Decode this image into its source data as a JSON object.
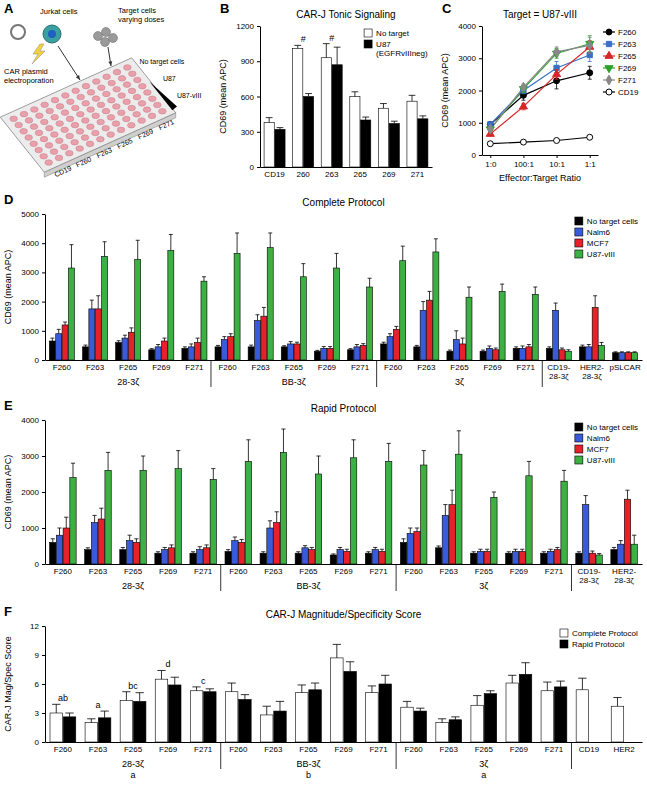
{
  "diagram": {
    "panel": "A",
    "plasmid_label": "CAR plasmid electroporation",
    "jurkat_label": "Jurkat cells",
    "target_label": "Target cells varying doses",
    "column_labels": [
      "No target cells",
      "U87",
      "U87-vIII"
    ],
    "row_labels": [
      "CD19",
      "F260",
      "F263",
      "F265",
      "F269",
      "F271"
    ]
  },
  "chart_data": [
    {
      "panel": "B",
      "type": "bar",
      "title": "CAR-J Tonic Signaling",
      "y_label": "CD69 (mean APC)",
      "categories": [
        "CD19",
        "260",
        "263",
        "265",
        "269",
        "271"
      ],
      "series": [
        {
          "name": "No target",
          "color": "#ffffff",
          "values": [
            380,
            1010,
            930,
            600,
            500,
            560
          ],
          "errors": [
            40,
            25,
            120,
            40,
            40,
            50
          ]
        },
        {
          "name": "U87 (EGFRvIIIneg)",
          "color": "#000000",
          "values": [
            320,
            600,
            870,
            400,
            370,
            410
          ],
          "errors": [
            15,
            25,
            150,
            25,
            20,
            25
          ]
        }
      ],
      "ylim": [
        0,
        1200
      ],
      "yticks": [
        0,
        300,
        600,
        900,
        1200
      ],
      "legend": "top-right",
      "annotations": [
        {
          "text": "#",
          "category_index": 1
        },
        {
          "text": "#",
          "category_index": 2
        }
      ]
    },
    {
      "panel": "C",
      "type": "line",
      "title": "Target = U87-vIII",
      "x_label": "Effector:Target Ratio",
      "y_label": "CD69 (mean APC)",
      "categories": [
        "1:0",
        "100:1",
        "10:1",
        "1:1"
      ],
      "series": [
        {
          "name": "F260",
          "color": "#000000",
          "marker": "circle",
          "values": [
            950,
            1850,
            2300,
            2550
          ],
          "errors": [
            80,
            150,
            250,
            200
          ]
        },
        {
          "name": "F263",
          "color": "#3a6fc4",
          "marker": "square",
          "values": [
            950,
            2000,
            2700,
            3100
          ],
          "errors": [
            60,
            100,
            200,
            200
          ]
        },
        {
          "name": "F265",
          "color": "#d62728",
          "marker": "triangle-up",
          "values": [
            650,
            1500,
            2500,
            3350
          ],
          "errors": [
            50,
            100,
            150,
            200
          ]
        },
        {
          "name": "F269",
          "color": "#2ca02c",
          "marker": "triangle-down",
          "values": [
            800,
            2050,
            3150,
            3450
          ],
          "errors": [
            60,
            100,
            150,
            250
          ]
        },
        {
          "name": "F271",
          "color": "#888888",
          "marker": "diamond",
          "values": [
            800,
            2100,
            3200,
            3400
          ],
          "errors": [
            60,
            100,
            150,
            250
          ]
        },
        {
          "name": "CD19",
          "color": "#000000",
          "marker": "circle-open",
          "values": [
            350,
            400,
            450,
            550
          ],
          "errors": [
            20,
            20,
            20,
            30
          ]
        }
      ],
      "ylim": [
        0,
        4000
      ],
      "yticks": [
        0,
        1000,
        2000,
        3000,
        4000
      ],
      "legend": "right"
    },
    {
      "panel": "D",
      "type": "bar",
      "title": "Complete Protocol",
      "y_label": "CD69 (mean APC)",
      "categories": [
        "F260",
        "F263",
        "F265",
        "F269",
        "F271",
        "F260",
        "F263",
        "F265",
        "F269",
        "F271",
        "F260",
        "F263",
        "F265",
        "F269",
        "F271",
        "CD19-28-3ζ",
        "HER2-28-3ζ",
        "pSLCAR"
      ],
      "groups": [
        {
          "name": "28-3ζ",
          "count": 5
        },
        {
          "name": "BB-3ζ",
          "count": 5
        },
        {
          "name": "3ζ",
          "count": 5
        }
      ],
      "series": [
        {
          "name": "No target cells",
          "color": "#000000",
          "values": [
            650,
            450,
            600,
            350,
            400,
            450,
            450,
            450,
            300,
            350,
            550,
            450,
            300,
            300,
            400,
            400,
            450,
            250
          ],
          "errors": [
            100,
            60,
            60,
            40,
            50,
            50,
            60,
            40,
            30,
            40,
            60,
            50,
            40,
            40,
            50,
            50,
            60,
            30
          ]
        },
        {
          "name": "Nalm6",
          "color": "#3a5bd9",
          "values": [
            900,
            1750,
            750,
            450,
            450,
            700,
            1350,
            550,
            400,
            450,
            800,
            1700,
            700,
            400,
            400,
            1700,
            450,
            250
          ],
          "errors": [
            150,
            300,
            100,
            80,
            100,
            100,
            200,
            80,
            60,
            80,
            100,
            300,
            300,
            80,
            80,
            250,
            80,
            30
          ]
        },
        {
          "name": "MCF7",
          "color": "#e8202a",
          "values": [
            1200,
            1750,
            950,
            650,
            600,
            800,
            1500,
            550,
            400,
            500,
            1050,
            2050,
            550,
            350,
            450,
            350,
            1800,
            250
          ],
          "errors": [
            100,
            450,
            150,
            100,
            150,
            100,
            300,
            60,
            60,
            60,
            100,
            300,
            200,
            60,
            80,
            60,
            400,
            30
          ]
        },
        {
          "name": "U87-vIII",
          "color": "#3cb043",
          "values": [
            3150,
            3550,
            3450,
            3750,
            2700,
            3650,
            3850,
            2850,
            3150,
            2500,
            3400,
            3700,
            2150,
            2350,
            2250,
            300,
            500,
            250
          ],
          "errors": [
            800,
            500,
            650,
            550,
            150,
            700,
            500,
            450,
            500,
            300,
            500,
            450,
            350,
            250,
            250,
            50,
            100,
            30
          ]
        }
      ],
      "ylim": [
        0,
        5000
      ],
      "yticks": [
        0,
        1000,
        2000,
        3000,
        4000,
        5000
      ],
      "legend": "top-right"
    },
    {
      "panel": "E",
      "type": "bar",
      "title": "Rapid Protocol",
      "y_label": "CD69 (mean APC)",
      "categories": [
        "F260",
        "F263",
        "F265",
        "F269",
        "F271",
        "F260",
        "F263",
        "F265",
        "F269",
        "F271",
        "F260",
        "F263",
        "F265",
        "F269",
        "F271",
        "CD19-28-3ζ",
        "HER2-28-3ζ"
      ],
      "groups": [
        {
          "name": "28-3ζ",
          "count": 5
        },
        {
          "name": "BB-3ζ",
          "count": 5
        },
        {
          "name": "3ζ",
          "count": 5
        }
      ],
      "series": [
        {
          "name": "No target cells",
          "color": "#000000",
          "values": [
            600,
            400,
            400,
            300,
            300,
            350,
            300,
            300,
            250,
            300,
            600,
            450,
            300,
            300,
            300,
            300,
            400
          ],
          "errors": [
            100,
            50,
            60,
            40,
            40,
            50,
            40,
            40,
            30,
            40,
            100,
            50,
            40,
            40,
            40,
            40,
            60
          ]
        },
        {
          "name": "Nalm6",
          "color": "#3a5bd9",
          "values": [
            800,
            1150,
            650,
            400,
            400,
            650,
            1000,
            450,
            400,
            400,
            850,
            1350,
            350,
            350,
            350,
            1650,
            550
          ],
          "errors": [
            200,
            200,
            150,
            60,
            80,
            100,
            200,
            60,
            60,
            60,
            150,
            300,
            60,
            60,
            60,
            250,
            100
          ]
        },
        {
          "name": "MCF7",
          "color": "#e8202a",
          "values": [
            1000,
            1250,
            600,
            450,
            450,
            600,
            1150,
            400,
            350,
            350,
            900,
            1650,
            350,
            350,
            400,
            300,
            1800
          ],
          "errors": [
            300,
            300,
            100,
            80,
            80,
            80,
            300,
            60,
            60,
            60,
            100,
            400,
            60,
            60,
            60,
            60,
            250
          ]
        },
        {
          "name": "U87-vIII",
          "color": "#3cb043",
          "values": [
            2400,
            2600,
            2600,
            2650,
            2350,
            2850,
            3100,
            2500,
            2950,
            2850,
            2750,
            3050,
            1850,
            2450,
            2300,
            250,
            550
          ],
          "errors": [
            400,
            500,
            400,
            500,
            300,
            600,
            650,
            500,
            500,
            500,
            400,
            650,
            150,
            400,
            300,
            40,
            250
          ]
        }
      ],
      "ylim": [
        0,
        4000
      ],
      "yticks": [
        0,
        1000,
        2000,
        3000,
        4000
      ],
      "legend": "top-right"
    },
    {
      "panel": "F",
      "type": "bar",
      "title": "CAR-J Magnitude/Specificity Score",
      "y_label": "CAR-J Mag/Spec Score",
      "categories": [
        "F260",
        "F263",
        "F265",
        "F269",
        "F271",
        "F260",
        "F263",
        "F265",
        "F269",
        "F271",
        "F260",
        "F263",
        "F265",
        "F269",
        "F271",
        "CD19",
        "HER2"
      ],
      "groups": [
        {
          "name": "28-3ζ",
          "count": 5,
          "letter": "a"
        },
        {
          "name": "BB-3ζ",
          "count": 5,
          "letter": "b"
        },
        {
          "name": "3ζ",
          "count": 5,
          "letter": "a"
        }
      ],
      "series": [
        {
          "name": "Complete Protocol",
          "color": "#ffffff",
          "values": [
            3.0,
            2.0,
            4.3,
            6.5,
            5.3,
            5.2,
            2.8,
            5.1,
            8.7,
            5.1,
            3.6,
            2.0,
            3.8,
            6.1,
            5.3,
            5.4,
            3.7
          ],
          "errors": [
            0.9,
            0.4,
            0.9,
            0.9,
            0.4,
            0.9,
            0.9,
            0.8,
            1.4,
            0.7,
            0.6,
            0.4,
            1.0,
            0.8,
            0.9,
            1.2,
            0.9
          ]
        },
        {
          "name": "Rapid Protocol",
          "color": "#000000",
          "values": [
            2.6,
            2.5,
            4.2,
            5.9,
            5.2,
            4.4,
            3.2,
            5.4,
            7.3,
            6.0,
            3.2,
            2.3,
            5.0,
            7.0,
            5.7,
            null,
            null
          ],
          "errors": [
            0.4,
            0.7,
            0.9,
            0.8,
            0.3,
            0.5,
            1.0,
            0.7,
            1.0,
            0.9,
            0.3,
            0.3,
            0.3,
            1.2,
            0.6,
            null,
            null
          ]
        }
      ],
      "ylim": [
        0,
        12
      ],
      "yticks": [
        0,
        3,
        6,
        9,
        12
      ],
      "legend": "top-right",
      "annotations": [
        {
          "text": "ab",
          "category_index": 0
        },
        {
          "text": "a",
          "category_index": 1
        },
        {
          "text": "bc",
          "category_index": 2
        },
        {
          "text": "d",
          "category_index": 3
        },
        {
          "text": "c",
          "category_index": 4
        }
      ]
    }
  ]
}
